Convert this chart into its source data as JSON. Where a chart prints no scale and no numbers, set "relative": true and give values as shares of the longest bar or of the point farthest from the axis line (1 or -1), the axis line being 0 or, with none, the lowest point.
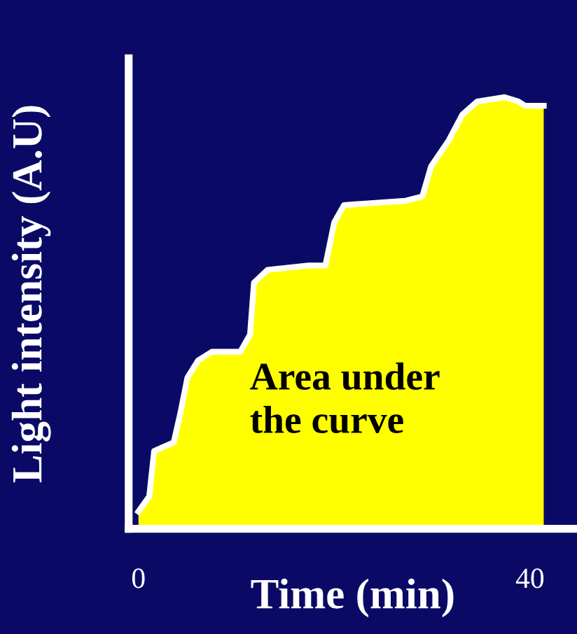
{
  "chart_data": {
    "type": "area",
    "relative": true,
    "xlabel": "Time (min)",
    "ylabel": "Light intensity (A.U)",
    "xlim": [
      -1,
      44.8
    ],
    "xticks": [
      0,
      40
    ],
    "tick_labels": "x",
    "annotations": [
      "Area under\nthe curve"
    ],
    "series": [
      {
        "color": "#ffff00",
        "x": [
          0,
          1.1,
          1.6,
          2.6,
          3.6,
          4.3,
          5.0,
          6.1,
          7.5,
          10.4,
          11.4,
          11.8,
          13.2,
          17.4,
          19.1,
          20,
          21,
          27.3,
          29,
          29.9,
          31.7,
          33.1,
          34.6,
          37.4,
          38.8,
          39.5,
          41.4
        ],
        "values": [
          0.04,
          0.075,
          0.18,
          0.19,
          0.2,
          0.27,
          0.35,
          0.39,
          0.41,
          0.41,
          0.45,
          0.57,
          0.6,
          0.61,
          0.61,
          0.71,
          0.75,
          0.76,
          0.77,
          0.84,
          0.9,
          0.96,
          0.99,
          1.0,
          0.99,
          0.98,
          0.98
        ]
      }
    ]
  }
}
